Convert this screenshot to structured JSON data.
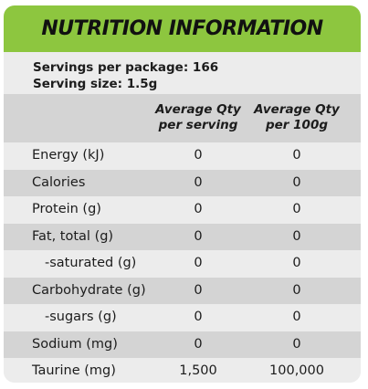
{
  "title": "NUTRITION INFORMATION",
  "servings_per_package": "Servings per package: 166",
  "serving_size": "Serving size: 1.5g",
  "columns": {
    "per_serving": [
      "Average Qty",
      "per serving"
    ],
    "per_100g": [
      "Average Qty",
      "per 100g"
    ]
  },
  "rows": [
    {
      "name": "Energy (kJ)",
      "per_serving": "0",
      "per_100g": "0",
      "sub": false
    },
    {
      "name": "Calories",
      "per_serving": "0",
      "per_100g": "0",
      "sub": false
    },
    {
      "name": "Protein (g)",
      "per_serving": "0",
      "per_100g": "0",
      "sub": false
    },
    {
      "name": "Fat, total (g)",
      "per_serving": "0",
      "per_100g": "0",
      "sub": false
    },
    {
      "name": "-saturated (g)",
      "per_serving": "0",
      "per_100g": "0",
      "sub": true
    },
    {
      "name": "Carbohydrate (g)",
      "per_serving": "0",
      "per_100g": "0",
      "sub": false
    },
    {
      "name": "-sugars (g)",
      "per_serving": "0",
      "per_100g": "0",
      "sub": true
    },
    {
      "name": "Sodium (mg)",
      "per_serving": "0",
      "per_100g": "0",
      "sub": false
    },
    {
      "name": "Taurine (mg)",
      "per_serving": "1,500",
      "per_100g": "100,000",
      "sub": false
    }
  ],
  "colors": {
    "header_green": "#8dc63f",
    "row_light": "#ececec",
    "row_dark": "#d4d4d4"
  }
}
